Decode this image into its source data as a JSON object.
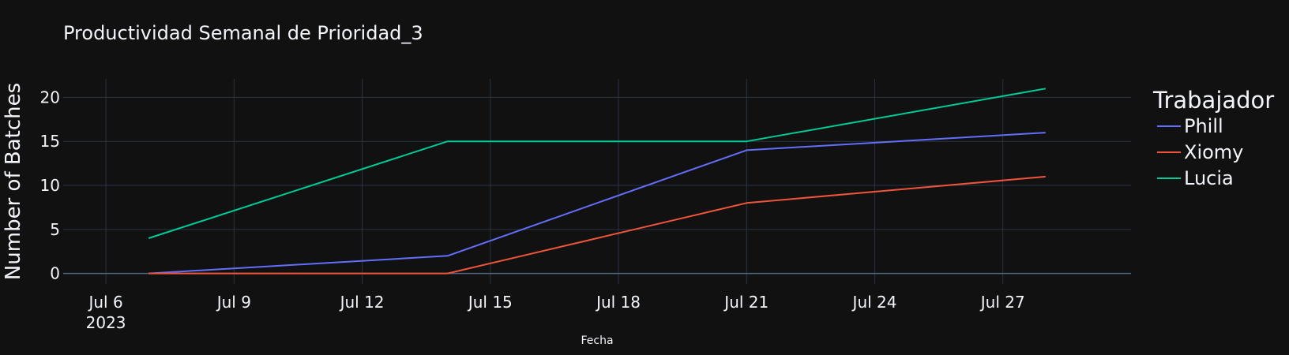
{
  "chart_data": {
    "type": "line",
    "title": "Productividad Semanal de Prioridad_3",
    "xlabel": "Fecha",
    "ylabel": "Number of Batches",
    "x": [
      "2023-07-07",
      "2023-07-14",
      "2023-07-21",
      "2023-07-28"
    ],
    "xlim": [
      "2023-07-05",
      "2023-07-30"
    ],
    "ylim": [
      -1.2,
      22.1
    ],
    "x_ticks": [
      {
        "date": "2023-07-06",
        "label": "Jul 6",
        "sublabel": "2023"
      },
      {
        "date": "2023-07-09",
        "label": "Jul 9"
      },
      {
        "date": "2023-07-12",
        "label": "Jul 12"
      },
      {
        "date": "2023-07-15",
        "label": "Jul 15"
      },
      {
        "date": "2023-07-18",
        "label": "Jul 18"
      },
      {
        "date": "2023-07-21",
        "label": "Jul 21"
      },
      {
        "date": "2023-07-24",
        "label": "Jul 24"
      },
      {
        "date": "2023-07-27",
        "label": "Jul 27"
      }
    ],
    "y_ticks": [
      0,
      5,
      10,
      15,
      20
    ],
    "grid": true,
    "legend": {
      "title": "Trabajador",
      "placement": "right"
    },
    "series": [
      {
        "name": "Phill",
        "color": "#636efa",
        "values": [
          0,
          2,
          14,
          16
        ]
      },
      {
        "name": "Xiomy",
        "color": "#ef553b",
        "values": [
          0,
          0,
          8,
          11
        ]
      },
      {
        "name": "Lucia",
        "color": "#00cc96",
        "values": [
          4,
          15,
          15,
          21
        ]
      }
    ],
    "colors": {
      "background": "#111111",
      "grid": "#283442",
      "zeroline": "#506784",
      "text": "#f2f5fa"
    }
  }
}
